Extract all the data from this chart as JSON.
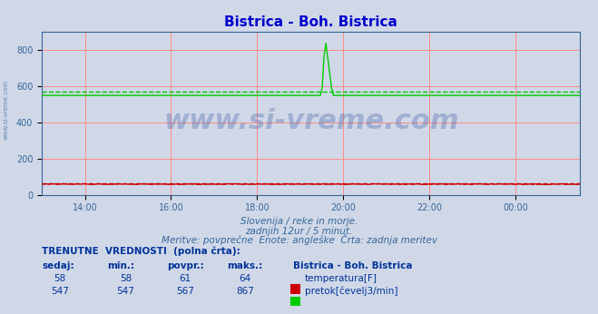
{
  "title": "Bistrica - Boh. Bistrica",
  "title_color": "#0000cc",
  "bg_color": "#d0d8e8",
  "plot_bg_color": "#d0d8e8",
  "xlabel": "",
  "ylabel": "",
  "xlim_hours": [
    13.0,
    1.5
  ],
  "ylim": [
    0,
    900
  ],
  "yticks": [
    0,
    200,
    400,
    600,
    800
  ],
  "xtick_labels": [
    "14:00",
    "16:00",
    "18:00",
    "20:00",
    "22:00",
    "00:00"
  ],
  "xtick_hours": [
    14,
    16,
    18,
    20,
    22,
    24
  ],
  "grid_color_major": "#ff8888",
  "grid_color_minor": "#ffcccc",
  "temp_color": "#cc0000",
  "flow_color": "#00cc00",
  "temp_value": 58,
  "flow_base": 547,
  "flow_max": 867,
  "flow_avg": 567,
  "temp_avg": 61,
  "spike_start_hour": 19.5,
  "spike_peak_hour": 19.58,
  "spike_end_hour": 19.75,
  "watermark": "www.si-vreme.com",
  "watermark_color": "#4466aa",
  "watermark_alpha": 0.35,
  "subtitle1": "Slovenija / reke in morje.",
  "subtitle2": "zadnjih 12ur / 5 minut.",
  "subtitle3": "Meritve: povprečne  Enote: angleške  Črta: zadnja meritev",
  "subtitle_color": "#336699",
  "table_header": "TRENUTNE  VREDNOSTI  (polna črta):",
  "col_headers": [
    "sedaj:",
    "min.:",
    "povpr.:",
    "maks.:",
    "Bistrica - Boh. Bistrica"
  ],
  "row1": [
    58,
    58,
    61,
    64,
    "temperatura[F]"
  ],
  "row2": [
    547,
    547,
    567,
    867,
    "pretok[čevelj3/min]"
  ],
  "table_color": "#003399",
  "sidewater": "www.si-vreme.com",
  "total_hours": 12,
  "start_hour": 13.0
}
